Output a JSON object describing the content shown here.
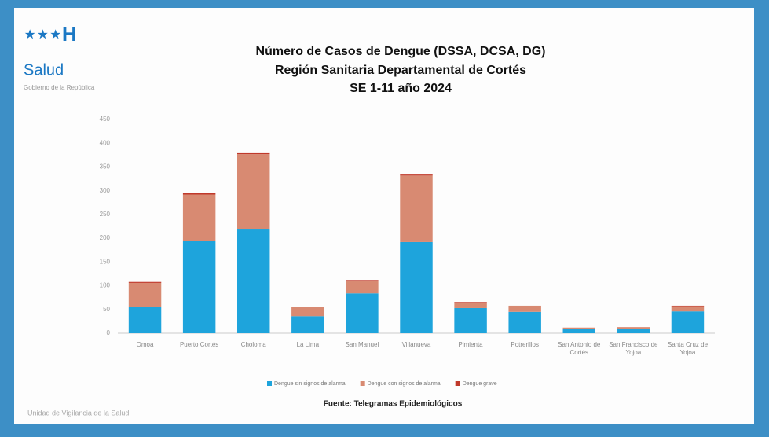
{
  "chart_data": {
    "type": "stacked_bar",
    "logo": {
      "text": "Salud",
      "subtitle": "Gobierno de la República"
    },
    "title": "Número de Casos de Dengue (DSSA, DCSA, DG)",
    "subtitle": "Región Sanitaria Departamental de Cortés",
    "subtitle2": "SE 1-11 año 2024",
    "categories": [
      "Omoa",
      "Puerto Cortés",
      "Choloma",
      "La Lima",
      "San Manuel",
      "Villanueva",
      "Pimienta",
      "Potrerillos",
      "San Antonio de Cortés",
      "San Francisco de Yojoa",
      "Santa Cruz de Yojoa"
    ],
    "series": [
      {
        "name": "Dengue sin signos de alarma",
        "color": "#1ea4dc",
        "values": [
          55,
          194,
          220,
          36,
          84,
          192,
          53,
          45,
          9,
          9,
          46
        ]
      },
      {
        "name": "Dengue con signos de alarma",
        "color": "#d88a72",
        "values": [
          51,
          98,
          157,
          19,
          26,
          140,
          12,
          13,
          3,
          4,
          11
        ]
      },
      {
        "name": "Dengue grave",
        "color": "#c0392b",
        "values": [
          2,
          3,
          2,
          1,
          2,
          2,
          1,
          0,
          0,
          0,
          1
        ]
      }
    ],
    "ylim": [
      0,
      450
    ],
    "yticks": [
      0,
      50,
      100,
      150,
      200,
      250,
      300,
      350,
      400,
      450
    ],
    "legend": "bottom",
    "source": "Fuente: Telegramas Epidemiológicos",
    "footer": "Unidad de Vigilancia de la Salud"
  }
}
